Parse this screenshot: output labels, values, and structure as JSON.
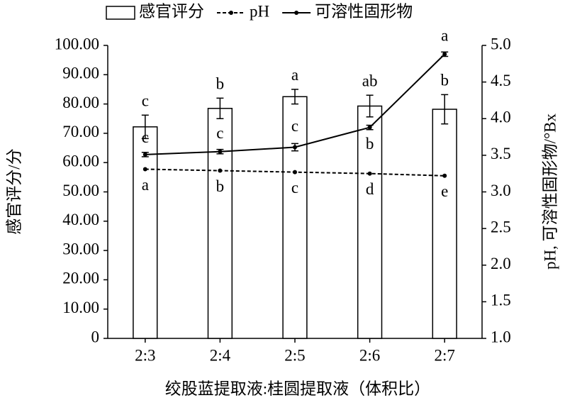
{
  "chart_data": {
    "type": "bar-line",
    "categories": [
      "2:3",
      "2:4",
      "2:5",
      "2:6",
      "2:7"
    ],
    "x_label": "绞股蓝提取液:桂圆提取液（体积比）",
    "y_label": "感官评分/分",
    "y2_label": "pH, 可溶性固形物/°Bx",
    "ylim": [
      0,
      100
    ],
    "yticks": [
      0,
      {
        "value": 10,
        "label": "10.00"
      },
      {
        "value": 20,
        "label": "20.00"
      },
      {
        "value": 30,
        "label": "30.00"
      },
      {
        "value": 40,
        "label": "40.00"
      },
      {
        "value": 50,
        "label": "50.00"
      },
      {
        "value": 60,
        "label": "60.00"
      },
      {
        "value": 70,
        "label": "70.00"
      },
      {
        "value": 80,
        "label": "80.00"
      },
      {
        "value": 90,
        "label": "90.00"
      },
      {
        "value": 100,
        "label": "100.00"
      }
    ],
    "y2lim": [
      1,
      5
    ],
    "y2ticks": [
      {
        "value": 1,
        "label": "1.0"
      },
      1.5,
      {
        "value": 2,
        "label": "2.0"
      },
      2.5,
      {
        "value": 3,
        "label": "3.0"
      },
      3.5,
      {
        "value": 4,
        "label": "4.0"
      },
      4.5,
      {
        "value": 5,
        "label": "5.0"
      }
    ],
    "series": [
      {
        "name": "感官评分",
        "type": "bar",
        "color": "#000000",
        "values": [
          72.2,
          78.5,
          82.5,
          79.3,
          78.2
        ],
        "errors": [
          4,
          3.5,
          2.5,
          3.7,
          5
        ],
        "letters": [
          "c",
          "b",
          "a",
          "ab",
          "b"
        ]
      },
      {
        "name": "pH",
        "type": "line",
        "axis": "y2",
        "line_style": "dashed",
        "color": "#000000",
        "values": [
          3.31,
          3.29,
          3.27,
          3.25,
          3.22
        ],
        "letters": [
          "a",
          "b",
          "c",
          "d",
          "e"
        ]
      },
      {
        "name": "可溶性固形物",
        "type": "line",
        "axis": "y2",
        "line_style": "solid",
        "color": "#000000",
        "values": [
          3.51,
          3.55,
          3.61,
          3.88,
          4.88
        ],
        "errors": [
          0.03,
          0.03,
          0.05,
          0.03,
          0.03
        ],
        "letters": [
          "c",
          "c",
          "c",
          "b",
          "a"
        ]
      }
    ]
  }
}
